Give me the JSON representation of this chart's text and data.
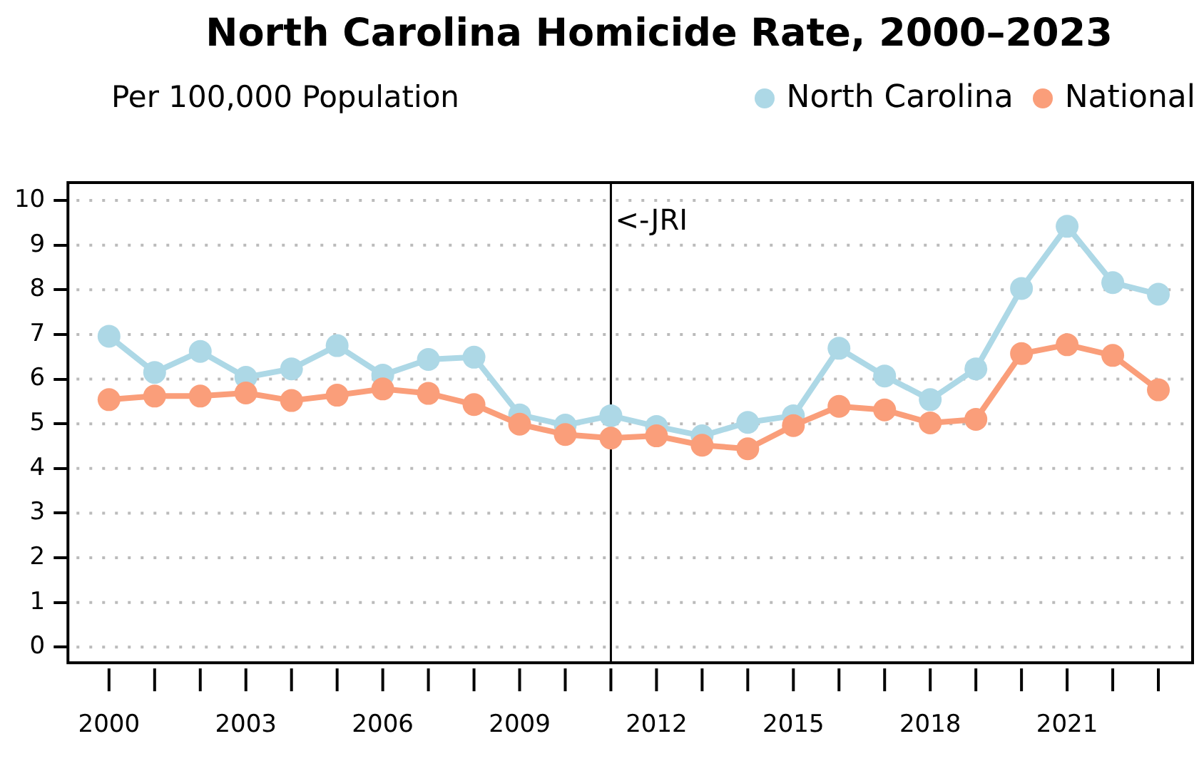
{
  "chart_data": {
    "type": "line",
    "title": "North Carolina Homicide Rate, 2000–2023",
    "subtitle": "Per 100,000 Population",
    "x": [
      2000,
      2001,
      2002,
      2003,
      2004,
      2005,
      2006,
      2007,
      2008,
      2009,
      2010,
      2011,
      2012,
      2013,
      2014,
      2015,
      2016,
      2017,
      2018,
      2019,
      2020,
      2021,
      2022,
      2023
    ],
    "series": [
      {
        "name": "North Carolina",
        "color": "#add8e6",
        "values": [
          6.96,
          6.15,
          6.62,
          6.04,
          6.23,
          6.75,
          6.09,
          6.44,
          6.49,
          5.2,
          4.97,
          5.18,
          4.94,
          4.73,
          5.03,
          5.18,
          6.69,
          6.07,
          5.54,
          6.23,
          8.03,
          9.42,
          8.16,
          7.9
        ]
      },
      {
        "name": "National",
        "color": "#fa9e7a",
        "values": [
          5.54,
          5.62,
          5.62,
          5.69,
          5.52,
          5.64,
          5.78,
          5.68,
          5.43,
          4.99,
          4.76,
          4.68,
          4.73,
          4.52,
          4.44,
          4.96,
          5.39,
          5.31,
          5.02,
          5.1,
          6.57,
          6.77,
          6.53,
          5.76
        ]
      }
    ],
    "xlim": [
      1999.1,
      2023.75
    ],
    "xticks": [
      2000,
      {
        "value": 2001,
        "label": null
      },
      {
        "value": 2002,
        "label": null
      },
      2003,
      {
        "value": 2004,
        "label": null
      },
      {
        "value": 2005,
        "label": null
      },
      2006,
      {
        "value": 2007,
        "label": null
      },
      {
        "value": 2008,
        "label": null
      },
      2009,
      {
        "value": 2010,
        "label": null
      },
      {
        "value": 2011,
        "label": null
      },
      2012,
      {
        "value": 2013,
        "label": null
      },
      {
        "value": 2014,
        "label": null
      },
      2015,
      {
        "value": 2016,
        "label": null
      },
      {
        "value": 2017,
        "label": null
      },
      2018,
      {
        "value": 2019,
        "label": null
      },
      {
        "value": 2020,
        "label": null
      },
      2021,
      {
        "value": 2022,
        "label": null
      },
      {
        "value": 2023,
        "label": null
      }
    ],
    "ylim": [
      -0.35,
      10.4
    ],
    "yticks": [
      0,
      1,
      2,
      3,
      4,
      5,
      6,
      7,
      8,
      9,
      10
    ],
    "ref_lines": [
      {
        "axis": "x",
        "value": 2011,
        "label": "<-JRI",
        "color": "#000000"
      }
    ],
    "grid": "y",
    "legend": "top right",
    "marker": "circle",
    "line_style": "solid"
  }
}
